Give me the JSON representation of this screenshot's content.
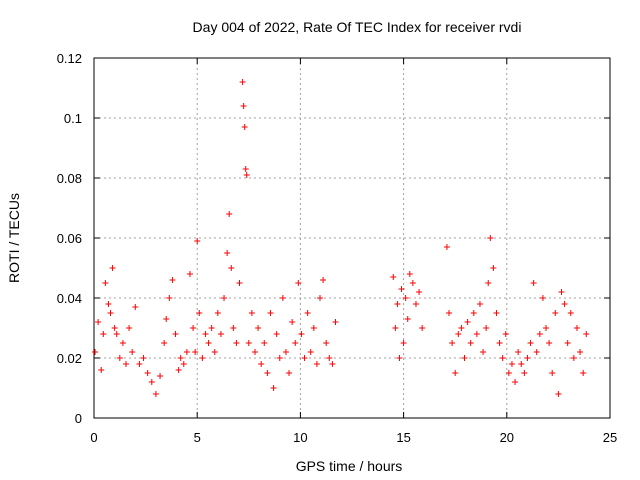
{
  "chart_data": {
    "type": "scatter",
    "title": "Day 004 of 2022, Rate Of TEC Index for receiver rvdi",
    "xlabel": "GPS time / hours",
    "ylabel": "ROTI / TECUs",
    "xlim": [
      0,
      25
    ],
    "ylim": [
      0,
      0.12
    ],
    "xticks": [
      0,
      5,
      10,
      15,
      20,
      25
    ],
    "xtick_labels": [
      "0",
      "5",
      "10",
      "15",
      "20",
      "25"
    ],
    "yticks": [
      0,
      0.02,
      0.04,
      0.06,
      0.08,
      0.1,
      0.12
    ],
    "ytick_labels": [
      "0",
      "0.02",
      "0.04",
      "0.06",
      "0.08",
      "0.1",
      "0.12"
    ],
    "grid": true,
    "marker": "plus",
    "series": [
      {
        "name": "ROTI",
        "color": "#ff0000",
        "x": [
          0.05,
          0.2,
          0.35,
          0.45,
          0.55,
          0.7,
          0.8,
          0.9,
          1.0,
          1.1,
          1.25,
          1.4,
          1.55,
          1.7,
          1.85,
          2.0,
          2.2,
          2.4,
          2.6,
          2.8,
          3.0,
          3.2,
          3.4,
          3.5,
          3.65,
          3.8,
          3.95,
          4.1,
          4.2,
          4.35,
          4.5,
          4.65,
          4.8,
          4.9,
          5.0,
          5.1,
          5.25,
          5.4,
          5.55,
          5.7,
          5.85,
          6.0,
          6.15,
          6.3,
          6.45,
          6.55,
          6.65,
          6.75,
          6.9,
          7.05,
          7.2,
          7.25,
          7.3,
          7.35,
          7.4,
          7.5,
          7.65,
          7.8,
          7.95,
          8.1,
          8.25,
          8.4,
          8.55,
          8.7,
          8.85,
          9.0,
          9.15,
          9.3,
          9.45,
          9.6,
          9.75,
          9.9,
          10.05,
          10.2,
          10.35,
          10.5,
          10.65,
          10.8,
          10.95,
          11.1,
          11.25,
          11.4,
          11.55,
          11.7,
          14.5,
          14.6,
          14.7,
          14.8,
          14.9,
          15.0,
          15.1,
          15.2,
          15.3,
          15.45,
          15.6,
          15.75,
          15.9,
          17.1,
          17.2,
          17.35,
          17.5,
          17.65,
          17.8,
          17.95,
          18.1,
          18.25,
          18.4,
          18.55,
          18.7,
          18.85,
          19.0,
          19.1,
          19.2,
          19.35,
          19.5,
          19.65,
          19.8,
          19.95,
          20.1,
          20.25,
          20.4,
          20.55,
          20.7,
          20.85,
          21.0,
          21.15,
          21.3,
          21.45,
          21.6,
          21.75,
          21.9,
          22.05,
          22.2,
          22.35,
          22.5,
          22.65,
          22.8,
          22.95,
          23.1,
          23.25,
          23.4,
          23.55,
          23.7,
          23.85
        ],
        "y": [
          0.022,
          0.032,
          0.016,
          0.028,
          0.045,
          0.038,
          0.035,
          0.05,
          0.03,
          0.028,
          0.02,
          0.025,
          0.018,
          0.03,
          0.022,
          0.037,
          0.018,
          0.02,
          0.015,
          0.012,
          0.008,
          0.014,
          0.025,
          0.033,
          0.04,
          0.046,
          0.028,
          0.016,
          0.02,
          0.018,
          0.022,
          0.048,
          0.03,
          0.022,
          0.059,
          0.035,
          0.02,
          0.028,
          0.025,
          0.03,
          0.022,
          0.035,
          0.028,
          0.04,
          0.055,
          0.068,
          0.05,
          0.03,
          0.025,
          0.045,
          0.112,
          0.104,
          0.097,
          0.083,
          0.081,
          0.025,
          0.035,
          0.022,
          0.03,
          0.018,
          0.025,
          0.015,
          0.035,
          0.01,
          0.028,
          0.02,
          0.04,
          0.022,
          0.015,
          0.032,
          0.025,
          0.045,
          0.028,
          0.02,
          0.035,
          0.022,
          0.03,
          0.018,
          0.04,
          0.046,
          0.025,
          0.02,
          0.018,
          0.032,
          0.047,
          0.03,
          0.038,
          0.02,
          0.043,
          0.025,
          0.04,
          0.033,
          0.048,
          0.045,
          0.038,
          0.042,
          0.03,
          0.057,
          0.035,
          0.025,
          0.015,
          0.028,
          0.03,
          0.02,
          0.032,
          0.025,
          0.035,
          0.028,
          0.038,
          0.022,
          0.03,
          0.045,
          0.06,
          0.05,
          0.035,
          0.025,
          0.02,
          0.028,
          0.015,
          0.018,
          0.012,
          0.022,
          0.018,
          0.015,
          0.02,
          0.025,
          0.045,
          0.022,
          0.028,
          0.04,
          0.03,
          0.025,
          0.015,
          0.035,
          0.008,
          0.042,
          0.038,
          0.025,
          0.035,
          0.02,
          0.03,
          0.022,
          0.015,
          0.028
        ]
      }
    ]
  }
}
